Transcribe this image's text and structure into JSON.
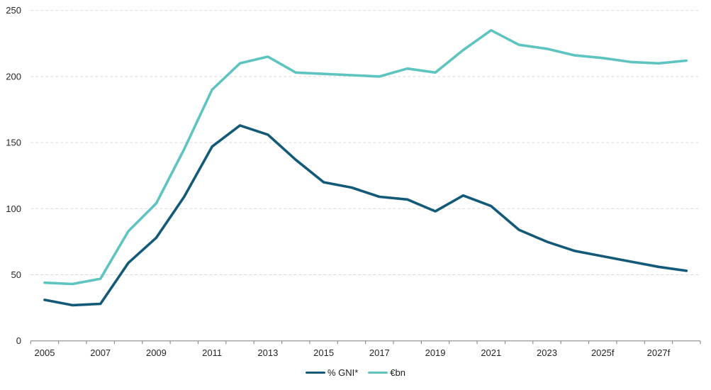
{
  "chart_data": {
    "type": "line",
    "title": "",
    "xlabel": "",
    "ylabel": "",
    "grid": "horizontal-dashed",
    "legend_position": "bottom-center",
    "y_axis": {
      "min": 0,
      "max": 250,
      "tick_interval": 50,
      "ticks": [
        0,
        50,
        100,
        150,
        200,
        250
      ]
    },
    "x_axis": {
      "categories": [
        "2005",
        "2006",
        "2007",
        "2008",
        "2009",
        "2010",
        "2011",
        "2012",
        "2013",
        "2014",
        "2015",
        "2016",
        "2017",
        "2018",
        "2019",
        "2020",
        "2021",
        "2022",
        "2023",
        "2024",
        "2025f",
        "2026f",
        "2027f",
        "2028f"
      ],
      "visible_tick_labels": [
        "2005",
        "2007",
        "2009",
        "2011",
        "2013",
        "2015",
        "2017",
        "2019",
        "2021",
        "2023",
        "2025f",
        "2027f"
      ]
    },
    "series": [
      {
        "name": "% GNI*",
        "color": "#135a78",
        "values": [
          31,
          27,
          28,
          59,
          78,
          109,
          147,
          163,
          156,
          137,
          120,
          116,
          109,
          107,
          98,
          110,
          102,
          84,
          75,
          68,
          64,
          60,
          56,
          53
        ]
      },
      {
        "name": "€bn",
        "color": "#5ec4bf",
        "values": [
          44,
          43,
          47,
          83,
          104,
          145,
          190,
          210,
          215,
          203,
          202,
          201,
          200,
          206,
          203,
          220,
          235,
          224,
          221,
          216,
          214,
          211,
          210,
          212
        ]
      }
    ],
    "colors": {
      "gridline": "#d9d9d9",
      "axis": "#7f7f7f",
      "tick_text": "#262626",
      "background": "#ffffff"
    }
  }
}
